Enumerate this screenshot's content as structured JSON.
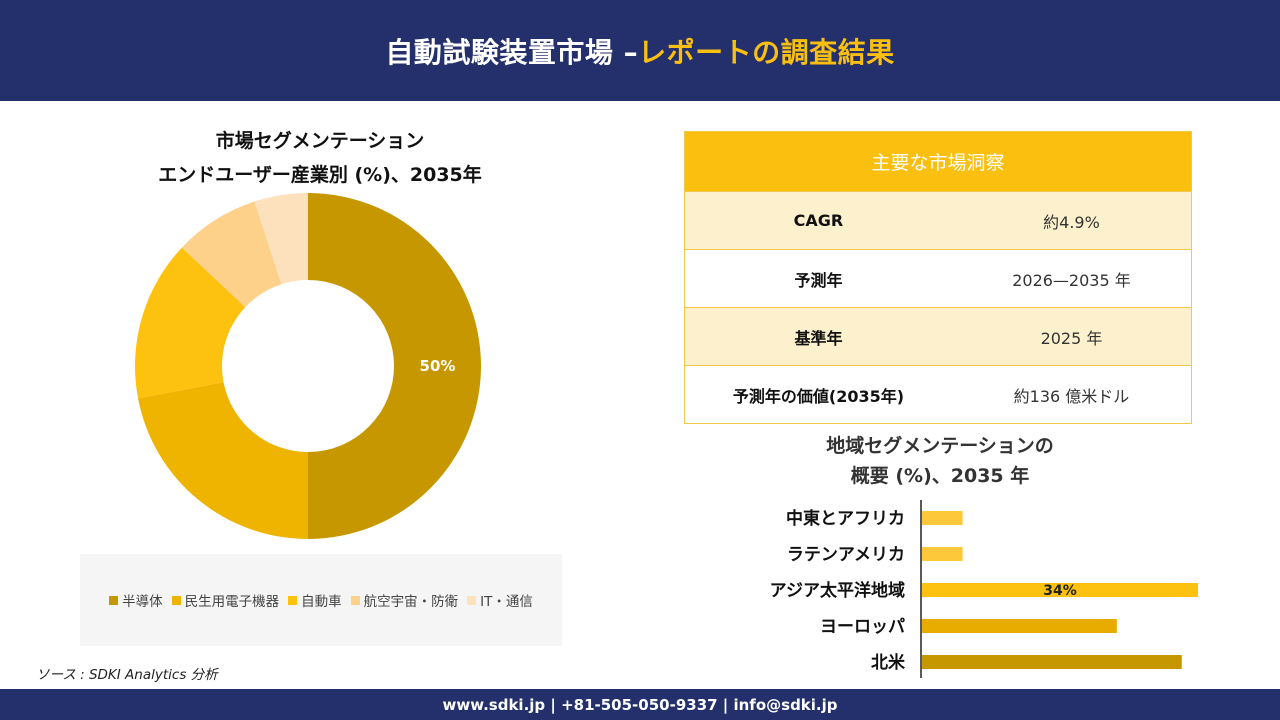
{
  "header": {
    "title_main": "自動試験装置市場 –",
    "title_accent": "レポートの調査結果"
  },
  "donut": {
    "title_line1": "市場セグメンテーション",
    "title_line2": "エンドユーザー産業別 (%)、2035年"
  },
  "insights": {
    "heading": "主要な市場洞察",
    "rows": [
      {
        "key": "CAGR",
        "value": "約4.9%"
      },
      {
        "key": "予測年",
        "value": "2026—2035 年"
      },
      {
        "key": "基準年",
        "value": "2025 年"
      },
      {
        "key": "予測年の価値(2035年)",
        "value": "約136 億米ドル"
      }
    ]
  },
  "region": {
    "title_line1": "地域セグメンテーションの",
    "title_line2": "概要 (%)、2035 年"
  },
  "source": "ソース : SDKI Analytics 分析",
  "footer": "www.sdki.jp | +81-505-050-9337 | info@sdki.jp",
  "colors": {
    "navy": "#24306b",
    "accent": "#fbbf0f"
  },
  "chart_data": [
    {
      "type": "pie",
      "donut": true,
      "categories": [
        "半導体",
        "民生用電子機器",
        "自動車",
        "航空宇宙・防衛",
        "IT・通信"
      ],
      "values": [
        50,
        22,
        15,
        8,
        5
      ],
      "data_labels": [
        "50%",
        "",
        "",
        "",
        ""
      ],
      "colors": [
        "#c79700",
        "#efb400",
        "#fdc10f",
        "#fed18a",
        "#fde1bc"
      ],
      "legend_position": "bottom"
    },
    {
      "type": "bar",
      "orientation": "horizontal",
      "categories": [
        "中東とアフリカ",
        "ラテンアメリカ",
        "アジア太平洋地域",
        "ヨーロッパ",
        "北米"
      ],
      "values": [
        5,
        5,
        34,
        24,
        32
      ],
      "data_labels": [
        "",
        "",
        "34%",
        "",
        ""
      ],
      "colors": [
        "#fdc93a",
        "#fdc93a",
        "#fdc10f",
        "#e8ac00",
        "#c79700"
      ]
    }
  ]
}
